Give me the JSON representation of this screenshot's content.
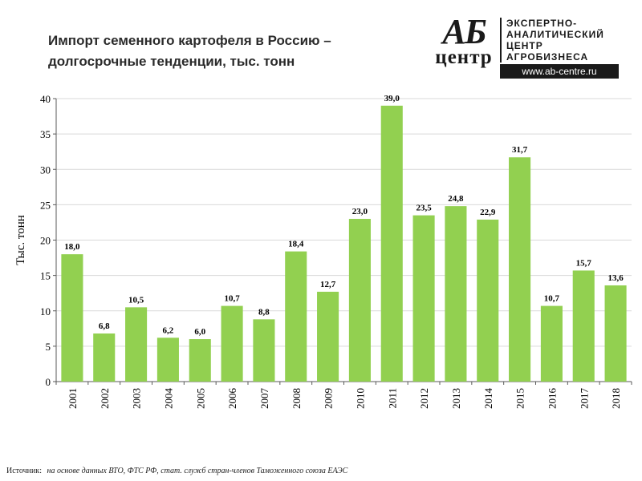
{
  "chart_data": {
    "type": "bar",
    "title_lines": [
      "Импорт семенного картофеля в Россию –",
      "долгосрочные тенденции, тыс. тонн"
    ],
    "xlabel": "",
    "ylabel": "Тыс. тонн",
    "ylim": [
      0,
      40
    ],
    "yticks": [
      0,
      5,
      10,
      15,
      20,
      25,
      30,
      35,
      40
    ],
    "grid": true,
    "categories": [
      "2001",
      "2002",
      "2003",
      "2004",
      "2005",
      "2006",
      "2007",
      "2008",
      "2009",
      "2010",
      "2011",
      "2012",
      "2013",
      "2014",
      "2015",
      "2016",
      "2017",
      "2018"
    ],
    "values": [
      18.0,
      6.8,
      10.5,
      6.2,
      6.0,
      10.7,
      8.8,
      18.4,
      12.7,
      23.0,
      39.0,
      23.5,
      24.8,
      22.9,
      31.7,
      10.7,
      15.7,
      13.6
    ],
    "value_labels": [
      "18,0",
      "6,8",
      "10,5",
      "6,2",
      "6,0",
      "10,7",
      "8,8",
      "18,4",
      "12,7",
      "23,0",
      "39,0",
      "23,5",
      "24,8",
      "22,9",
      "31,7",
      "10,7",
      "15,7",
      "13,6"
    ],
    "bar_color": "#92d050"
  },
  "logo": {
    "mark_top": "АБ",
    "mark_bottom": "центр",
    "lines": [
      "ЭКСПЕРТНО-",
      "АНАЛИТИЧЕСКИЙ",
      "ЦЕНТР",
      "АГРОБИЗНЕСА"
    ],
    "url": "www.ab-centre.ru"
  },
  "source": {
    "label": "Источник:",
    "text": "на основе данных ВТО, ФТС РФ, стат. служб стран-членов Таможенного союза ЕАЭС"
  }
}
